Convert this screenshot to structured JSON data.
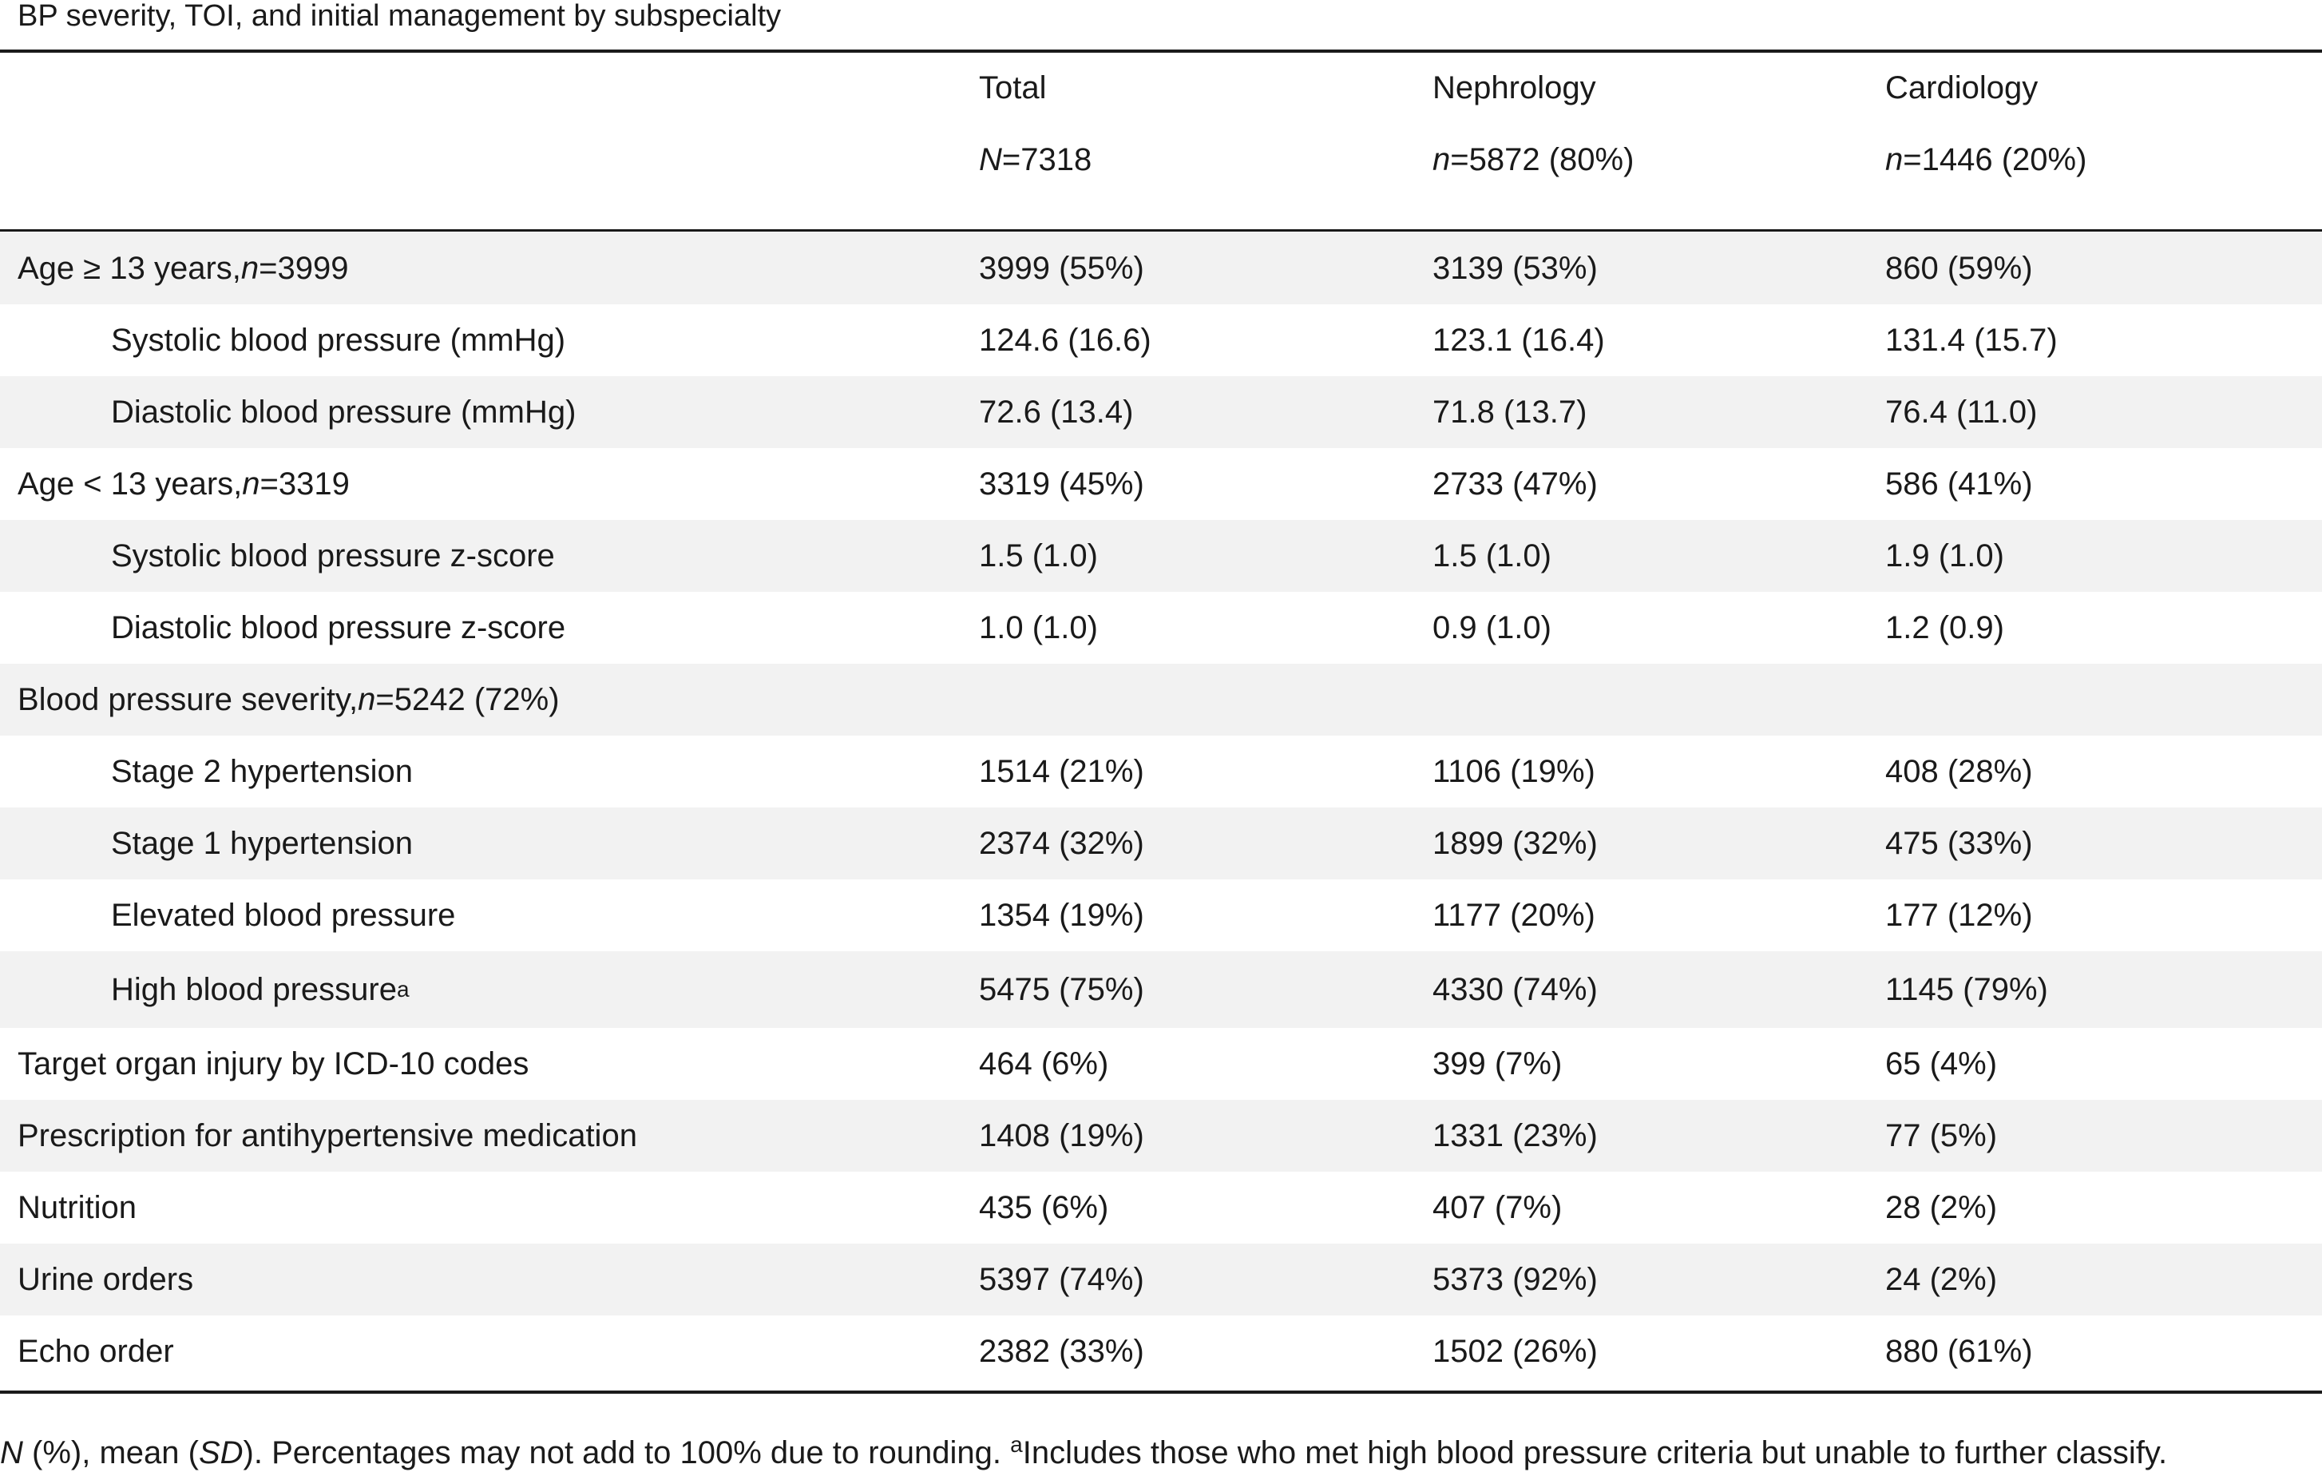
{
  "table": {
    "caption": "BP severity, TOI, and initial management by subspecialty",
    "columns": [
      {
        "name": "Total",
        "n_prefix": "N",
        "n_value": "=7318"
      },
      {
        "name": "Nephrology",
        "n_prefix": "n",
        "n_value": "=5872 (80%)"
      },
      {
        "name": "Cardiology",
        "n_prefix": "n",
        "n_value": "=1446 (20%)"
      }
    ],
    "rows": [
      {
        "label": "Age ≥ 13 years, ",
        "label_n": "n",
        "label_suffix": "=3999",
        "values": [
          "3999 (55%)",
          "3139 (53%)",
          "860 (59%)"
        ]
      },
      {
        "label": "Systolic blood pressure (mmHg)",
        "values": [
          "124.6 (16.6)",
          "123.1 (16.4)",
          "131.4 (15.7)"
        ]
      },
      {
        "label": "Diastolic blood pressure (mmHg)",
        "values": [
          "72.6 (13.4)",
          "71.8 (13.7)",
          "76.4 (11.0)"
        ]
      },
      {
        "label": "Age < 13 years, ",
        "label_n": "n",
        "label_suffix": "=3319",
        "values": [
          "3319 (45%)",
          "2733 (47%)",
          "586 (41%)"
        ]
      },
      {
        "label": "Systolic blood pressure z-score",
        "values": [
          "1.5 (1.0)",
          "1.5 (1.0)",
          "1.9 (1.0)"
        ]
      },
      {
        "label": "Diastolic blood pressure z-score",
        "values": [
          "1.0 (1.0)",
          "0.9 (1.0)",
          "1.2 (0.9)"
        ]
      },
      {
        "label": "Blood pressure severity, ",
        "label_n": "n",
        "label_suffix": "=5242 (72%)",
        "values": [
          "",
          "",
          ""
        ]
      },
      {
        "label": "Stage 2 hypertension",
        "values": [
          "1514 (21%)",
          "1106 (19%)",
          "408 (28%)"
        ]
      },
      {
        "label": "Stage 1 hypertension",
        "values": [
          "2374 (32%)",
          "1899 (32%)",
          "475 (33%)"
        ]
      },
      {
        "label": "Elevated blood pressure",
        "values": [
          "1354 (19%)",
          "1177 (20%)",
          "177 (12%)"
        ]
      },
      {
        "label": "High blood pressure",
        "label_sup": "a",
        "values": [
          "5475 (75%)",
          "4330 (74%)",
          "1145 (79%)"
        ]
      },
      {
        "label": "Target organ injury by ICD-10 codes",
        "values": [
          "464 (6%)",
          "399 (7%)",
          "65 (4%)"
        ]
      },
      {
        "label": "Prescription for antihypertensive medication",
        "values": [
          "1408 (19%)",
          "1331 (23%)",
          "77 (5%)"
        ]
      },
      {
        "label": "Nutrition",
        "values": [
          "435 (6%)",
          "407 (7%)",
          "28 (2%)"
        ]
      },
      {
        "label": "Urine orders",
        "values": [
          "5397 (74%)",
          "5373 (92%)",
          "24 (2%)"
        ]
      },
      {
        "label": "Echo order",
        "values": [
          "2382 (33%)",
          "1502 (26%)",
          "880 (61%)"
        ]
      }
    ],
    "footnote": {
      "n_symbol": "N",
      "part1": " (%), mean (",
      "sd_symbol": "SD",
      "part2": "). Percentages may not add to 100% due to rounding. ",
      "sup": "a",
      "part3": "Includes those who met high blood pressure criteria but unable to further classify."
    }
  }
}
